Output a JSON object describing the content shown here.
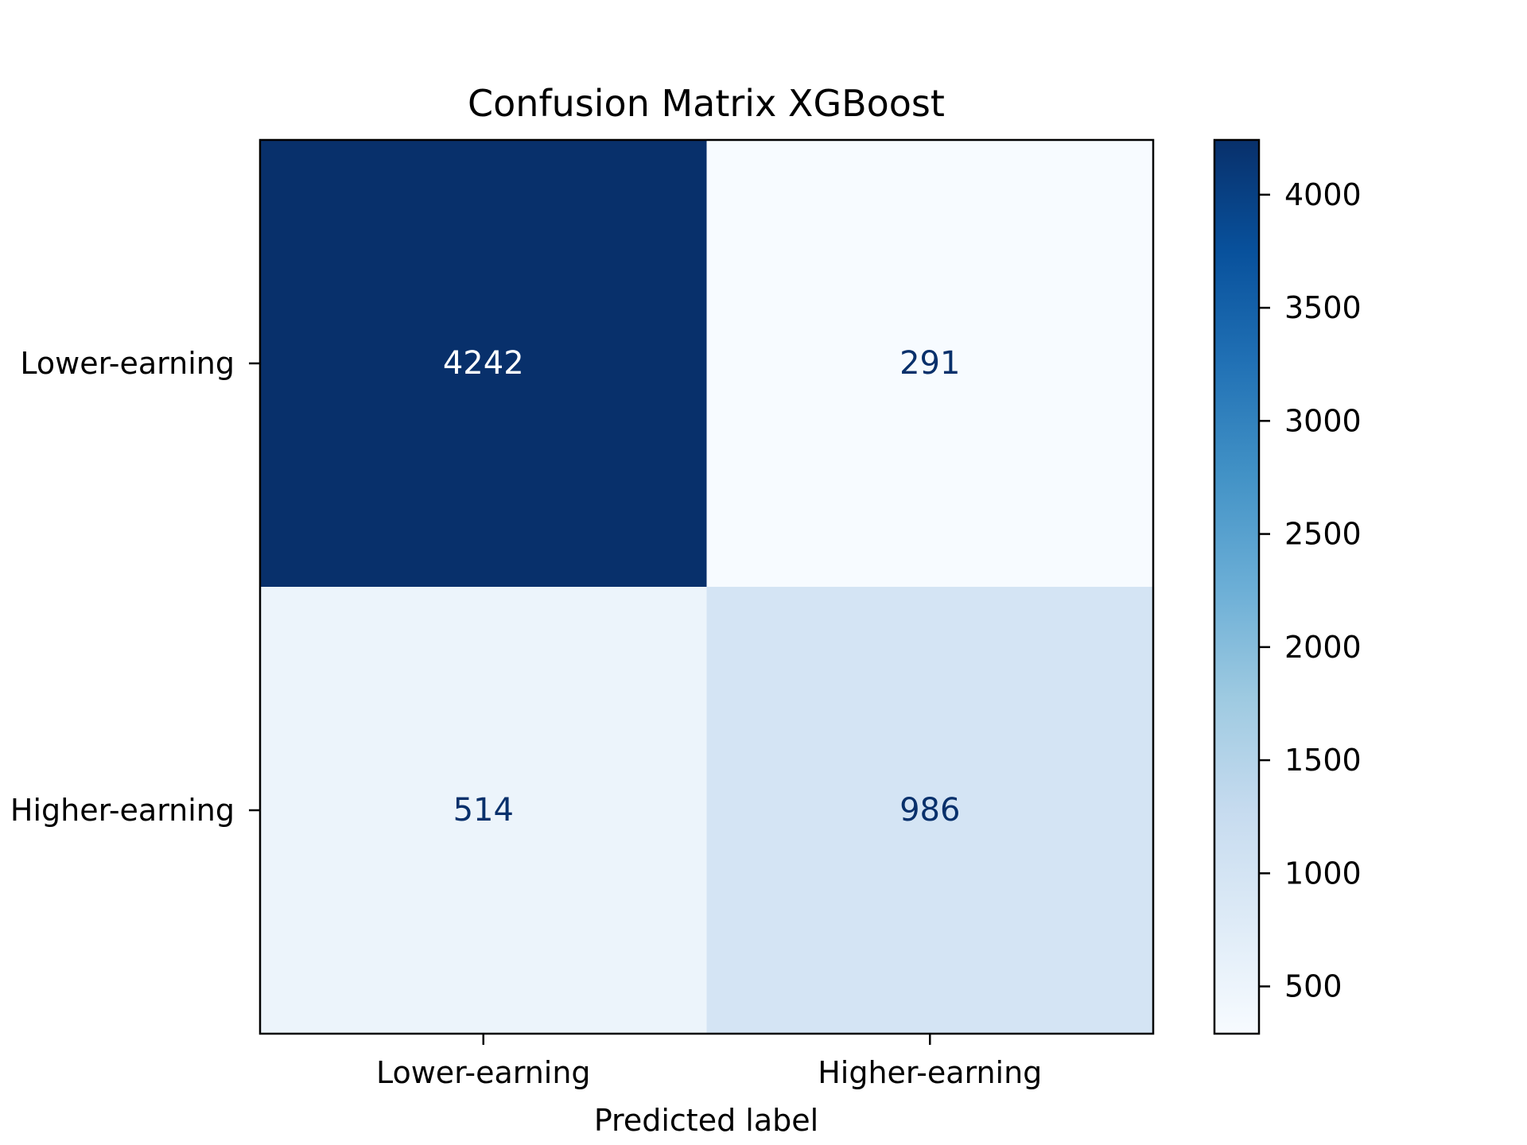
{
  "chart_data": {
    "type": "heatmap",
    "title": "Confusion Matrix XGBoost",
    "xlabel": "Predicted label",
    "ylabel": "",
    "x_categories": [
      "Lower-earning",
      "Higher-earning"
    ],
    "y_categories": [
      "Lower-earning",
      "Higher-earning"
    ],
    "matrix": [
      [
        4242,
        291
      ],
      [
        514,
        986
      ]
    ],
    "cell_labels": [
      [
        "4242",
        "291"
      ],
      [
        "514",
        "986"
      ]
    ],
    "colormap": "Blues",
    "colorbar": {
      "range": [
        291,
        4242
      ],
      "ticks": [
        500,
        1000,
        1500,
        2000,
        2500,
        3000,
        3500,
        4000
      ],
      "tick_labels": [
        "500",
        "1000",
        "1500",
        "2000",
        "2500",
        "3000",
        "3500",
        "4000"
      ]
    },
    "colors": {
      "text_on_dark": "#ffffff",
      "text_on_light": "#08306b",
      "axis": "#000000"
    }
  }
}
